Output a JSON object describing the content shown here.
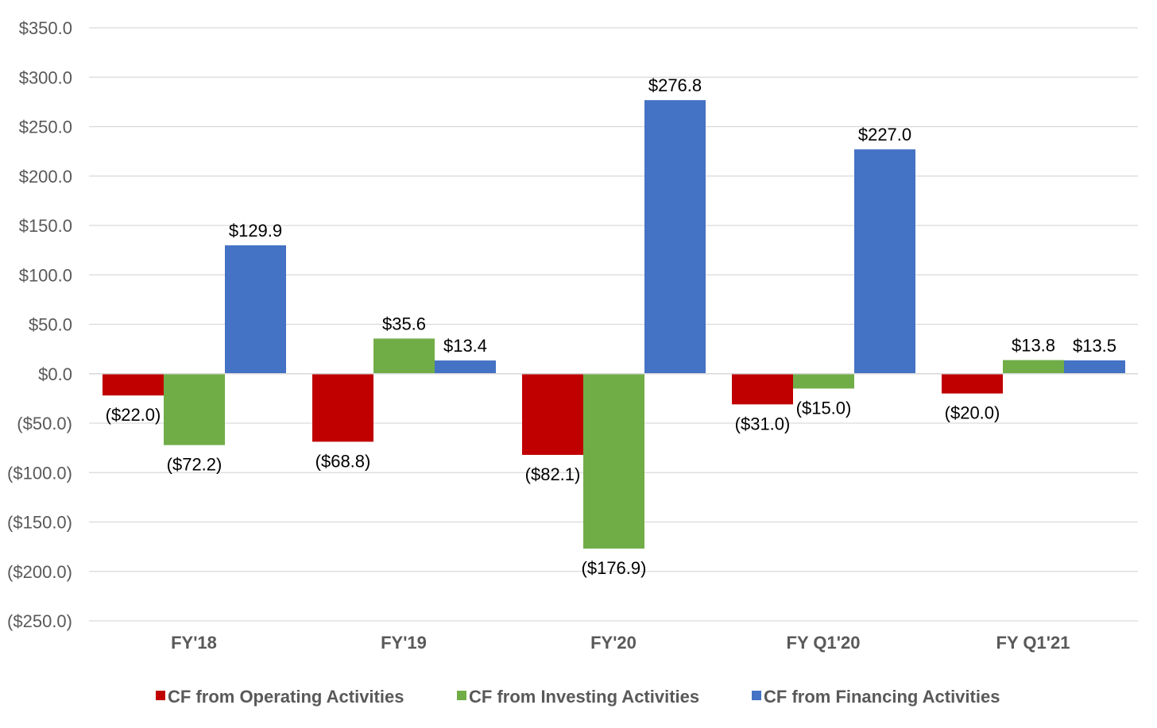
{
  "chart_data": {
    "type": "bar",
    "title": "",
    "xlabel": "",
    "ylabel": "",
    "ylim": [
      -250,
      350
    ],
    "y_ticks": [
      350,
      300,
      250,
      200,
      150,
      100,
      50,
      0,
      -50,
      -100,
      -150,
      -200,
      -250
    ],
    "y_tick_labels": [
      "$350.0",
      "$300.0",
      "$250.0",
      "$200.0",
      "$150.0",
      "$100.0",
      "$50.0",
      "$0.0",
      "($50.0)",
      "($100.0)",
      "($150.0)",
      "($200.0)",
      "($250.0)"
    ],
    "grid": true,
    "legend_position": "bottom",
    "categories": [
      "FY'18",
      "FY'19",
      "FY'20",
      "FY Q1'20",
      "FY Q1'21"
    ],
    "series": [
      {
        "name": "CF from Operating Activities",
        "color": "#C00000",
        "values": [
          -22.0,
          -68.8,
          -82.1,
          -31.0,
          -20.0
        ],
        "labels": [
          "($22.0)",
          "($68.8)",
          "($82.1)",
          "($31.0)",
          "($20.0)"
        ]
      },
      {
        "name": "CF from Investing Activities",
        "color": "#70AD47",
        "values": [
          -72.2,
          35.6,
          -176.9,
          -15.0,
          13.8
        ],
        "labels": [
          "($72.2)",
          "$35.6",
          "($176.9)",
          "($15.0)",
          "$13.8"
        ]
      },
      {
        "name": "CF from Financing Activities",
        "color": "#4472C4",
        "values": [
          129.9,
          13.4,
          276.8,
          227.0,
          13.5
        ],
        "labels": [
          "$129.9",
          "$13.4",
          "$276.8",
          "$227.0",
          "$13.5"
        ]
      }
    ]
  }
}
